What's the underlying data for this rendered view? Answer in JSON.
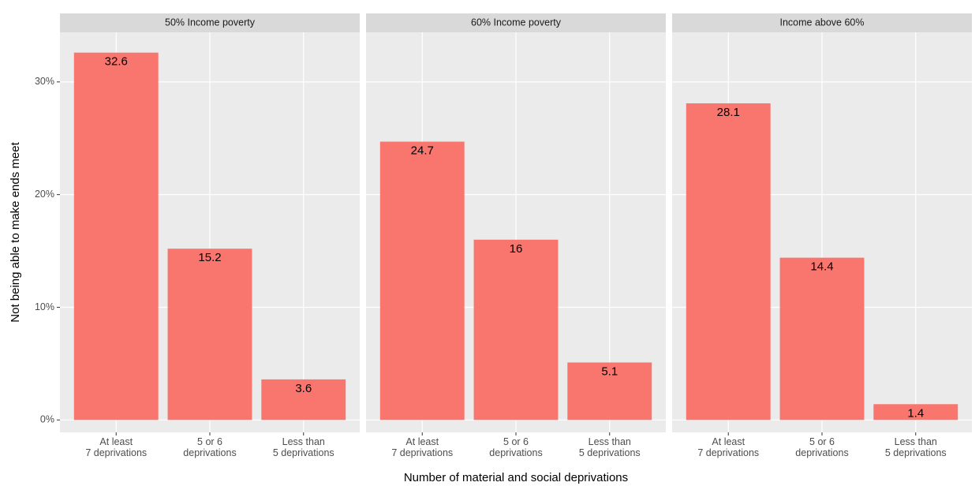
{
  "chart_data": [
    {
      "type": "bar",
      "title": "50% Income poverty",
      "ylabel": "Not being able to make ends meet",
      "categories": [
        "At least\n7 deprivations",
        "5 or 6\ndeprivations",
        "Less than\n5 deprivations"
      ],
      "values": [
        32.6,
        15.2,
        3.6
      ],
      "color": "#F8766D",
      "ylim": [
        -1.1,
        34.4
      ],
      "yticks": [
        {
          "value": 0,
          "label": "0%"
        },
        {
          "value": 10,
          "label": "10%"
        },
        {
          "value": 20,
          "label": "20%"
        },
        {
          "value": 30,
          "label": "30%"
        }
      ],
      "grid": true
    },
    {
      "type": "bar",
      "title": "60% Income poverty",
      "xlabel": "Number of material and social deprivations",
      "categories": [
        "At least\n7 deprivations",
        "5 or 6\ndeprivations",
        "Less than\n5 deprivations"
      ],
      "values": [
        24.7,
        16,
        5.1
      ],
      "color": "#F8766D",
      "ylim": [
        -1.1,
        34.4
      ],
      "grid": true
    },
    {
      "type": "bar",
      "title": "Income above 60%",
      "categories": [
        "At least\n7 deprivations",
        "5 or 6\ndeprivations",
        "Less than\n5 deprivations"
      ],
      "values": [
        28.1,
        14.4,
        1.4
      ],
      "color": "#F8766D",
      "ylim": [
        -1.1,
        34.4
      ],
      "grid": true
    }
  ]
}
